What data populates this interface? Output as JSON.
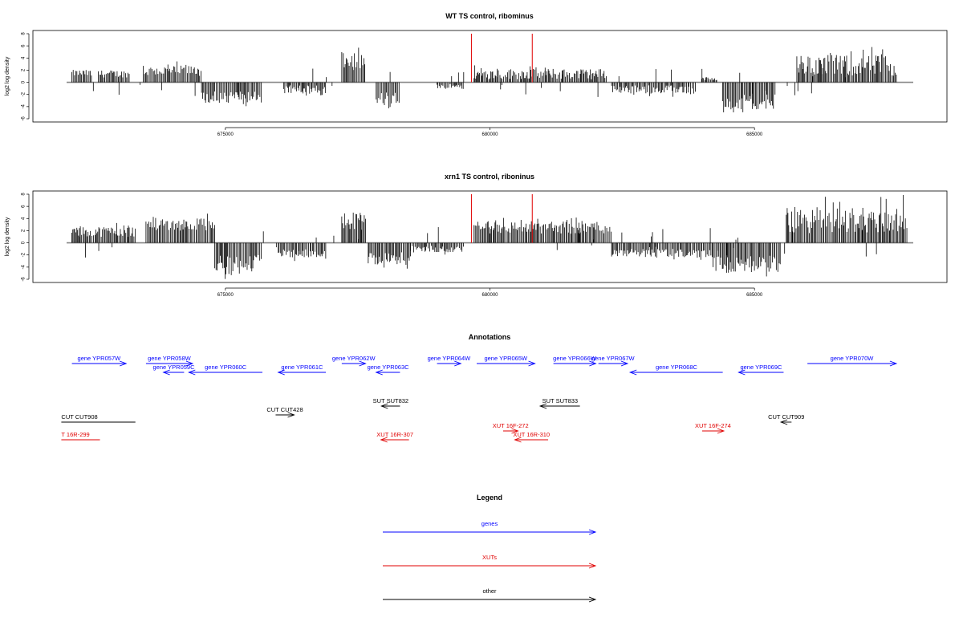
{
  "chart_data": [
    {
      "type": "bar",
      "title": "WT TS control, ribominus",
      "ylabel": "log2 log density",
      "xlabel": "",
      "xlim": [
        672000,
        688000
      ],
      "ylim": [
        -6,
        8
      ],
      "yticks": [
        8,
        6,
        4,
        2,
        0,
        -2,
        -4,
        -6
      ],
      "xticks": [
        675000,
        680000,
        685000
      ],
      "xtick_labels": [
        "675000",
        "680000",
        "685000"
      ],
      "highlight_color": "#e00000",
      "bar_color": "#000000",
      "baseline_color": "#888888",
      "highlights": [
        {
          "x": 679650,
          "y": 8
        },
        {
          "x": 680800,
          "y": 8
        }
      ],
      "regions": [
        {
          "start": 672100,
          "end": 672450,
          "min": 1.0,
          "max": 2.5,
          "sign": 1
        },
        {
          "start": 672600,
          "end": 673200,
          "min": 0.8,
          "max": 2.5,
          "sign": 1
        },
        {
          "start": 673450,
          "end": 674550,
          "min": 1.0,
          "max": 3.5,
          "sign": 1
        },
        {
          "start": 674550,
          "end": 675700,
          "min": 1.5,
          "max": 4.2,
          "sign": -1
        },
        {
          "start": 676100,
          "end": 676900,
          "min": 0.5,
          "max": 2.5,
          "sign": -1
        },
        {
          "start": 677200,
          "end": 677650,
          "min": 2.0,
          "max": 6.0,
          "sign": 1
        },
        {
          "start": 677850,
          "end": 678300,
          "min": 1.5,
          "max": 4.5,
          "sign": -1
        },
        {
          "start": 679000,
          "end": 679500,
          "min": 0.3,
          "max": 1.5,
          "sign": -1
        },
        {
          "start": 679700,
          "end": 682200,
          "min": 0.5,
          "max": 3.0,
          "sign": 1
        },
        {
          "start": 682300,
          "end": 683900,
          "min": 0.5,
          "max": 2.5,
          "sign": -1
        },
        {
          "start": 684000,
          "end": 684300,
          "min": 0.3,
          "max": 1.5,
          "sign": 1
        },
        {
          "start": 684400,
          "end": 685400,
          "min": 2.0,
          "max": 6.2,
          "sign": -1
        },
        {
          "start": 685800,
          "end": 687700,
          "min": 1.0,
          "max": 6.0,
          "sign": 1
        }
      ]
    },
    {
      "type": "bar",
      "title": "xrn1 TS control, riboninus",
      "ylabel": "log2 log density",
      "xlabel": "",
      "xlim": [
        672000,
        688000
      ],
      "ylim": [
        -6,
        8
      ],
      "yticks": [
        8,
        6,
        4,
        2,
        0,
        -2,
        -4,
        -6
      ],
      "xticks": [
        675000,
        680000,
        685000
      ],
      "xtick_labels": [
        "675000",
        "680000",
        "685000"
      ],
      "highlight_color": "#e00000",
      "bar_color": "#000000",
      "baseline_color": "#888888",
      "highlights": [
        {
          "x": 679650,
          "y": 8
        },
        {
          "x": 680800,
          "y": 8
        }
      ],
      "regions": [
        {
          "start": 672100,
          "end": 673300,
          "min": 1.0,
          "max": 3.5,
          "sign": 1
        },
        {
          "start": 673500,
          "end": 674800,
          "min": 2.0,
          "max": 5.0,
          "sign": 1
        },
        {
          "start": 674800,
          "end": 675700,
          "min": 2.0,
          "max": 6.0,
          "sign": -1
        },
        {
          "start": 676000,
          "end": 676900,
          "min": 1.0,
          "max": 3.0,
          "sign": -1
        },
        {
          "start": 677200,
          "end": 677650,
          "min": 2.0,
          "max": 6.5,
          "sign": 1
        },
        {
          "start": 677700,
          "end": 678500,
          "min": 1.5,
          "max": 4.5,
          "sign": -1
        },
        {
          "start": 678500,
          "end": 679500,
          "min": 0.5,
          "max": 2.0,
          "sign": -1
        },
        {
          "start": 679700,
          "end": 682300,
          "min": 1.5,
          "max": 4.5,
          "sign": 1
        },
        {
          "start": 682300,
          "end": 684200,
          "min": 1.0,
          "max": 3.0,
          "sign": -1
        },
        {
          "start": 684200,
          "end": 685500,
          "min": 2.0,
          "max": 6.0,
          "sign": -1
        },
        {
          "start": 685600,
          "end": 687900,
          "min": 1.5,
          "max": 7.9,
          "sign": 1
        }
      ]
    }
  ],
  "annotations": {
    "title": "Annotations",
    "features": [
      {
        "label": "gene YPR057W",
        "start": 672100,
        "end": 673125,
        "dir": "right",
        "row": 0,
        "color": "#0000ff"
      },
      {
        "label": "gene YPR058W",
        "start": 673500,
        "end": 674380,
        "dir": "right",
        "row": 0,
        "color": "#0000ff"
      },
      {
        "label": "gene YPR059C",
        "start": 673830,
        "end": 674220,
        "dir": "left",
        "row": 1,
        "color": "#0000ff"
      },
      {
        "label": "gene YPR060C",
        "start": 674310,
        "end": 675700,
        "dir": "left",
        "row": 1,
        "color": "#0000ff"
      },
      {
        "label": "gene YPR061C",
        "start": 676000,
        "end": 676900,
        "dir": "left",
        "row": 1,
        "color": "#0000ff"
      },
      {
        "label": "gene YPR062W",
        "start": 677200,
        "end": 677650,
        "dir": "right",
        "row": 0,
        "color": "#0000ff"
      },
      {
        "label": "gene YPR063C",
        "start": 677850,
        "end": 678300,
        "dir": "left",
        "row": 1,
        "color": "#0000ff"
      },
      {
        "label": "gene YPR064W",
        "start": 679000,
        "end": 679450,
        "dir": "right",
        "row": 0,
        "color": "#0000ff"
      },
      {
        "label": "gene YPR065W",
        "start": 679750,
        "end": 680850,
        "dir": "right",
        "row": 0,
        "color": "#0000ff"
      },
      {
        "label": "gene YPR066W",
        "start": 681200,
        "end": 682000,
        "dir": "right",
        "row": 0,
        "color": "#0000ff"
      },
      {
        "label": "gene YPR067W",
        "start": 682050,
        "end": 682600,
        "dir": "right",
        "row": 0,
        "color": "#0000ff"
      },
      {
        "label": "gene YPR068C",
        "start": 682650,
        "end": 684400,
        "dir": "left",
        "row": 1,
        "color": "#0000ff"
      },
      {
        "label": "gene YPR069C",
        "start": 684700,
        "end": 685550,
        "dir": "left",
        "row": 1,
        "color": "#0000ff"
      },
      {
        "label": "gene YPR070W",
        "start": 686000,
        "end": 687680,
        "dir": "right",
        "row": 0,
        "color": "#0000ff"
      },
      {
        "label": "SUT SUT832",
        "start": 677950,
        "end": 678300,
        "dir": "left",
        "row": 2,
        "color": "#000000"
      },
      {
        "label": "SUT SUT833",
        "start": 680950,
        "end": 681700,
        "dir": "left",
        "row": 2,
        "color": "#000000"
      },
      {
        "label": "CUT CUT428",
        "start": 675950,
        "end": 676300,
        "dir": "right",
        "row": 3,
        "color": "#000000"
      },
      {
        "label": "CUT CUT908",
        "start": 671900,
        "end": 673300,
        "dir": "none",
        "row": 4,
        "color": "#000000"
      },
      {
        "label": "CUT CUT909",
        "start": 685500,
        "end": 685700,
        "dir": "left",
        "row": 4,
        "color": "#000000"
      },
      {
        "label": "XUT 16F-272",
        "start": 680250,
        "end": 680530,
        "dir": "right",
        "row": 5,
        "color": "#e00000"
      },
      {
        "label": "XUT 16F-274",
        "start": 684010,
        "end": 684420,
        "dir": "right",
        "row": 5,
        "color": "#e00000"
      },
      {
        "label": "T 16R-299",
        "start": 671900,
        "end": 672630,
        "dir": "none",
        "row": 6,
        "color": "#e00000"
      },
      {
        "label": "XUT 16R-307",
        "start": 677940,
        "end": 678470,
        "dir": "left",
        "row": 6,
        "color": "#e00000"
      },
      {
        "label": "XUT 16R-310",
        "start": 680470,
        "end": 681100,
        "dir": "left",
        "row": 6,
        "color": "#e00000"
      }
    ]
  },
  "legend": {
    "title": "Legend",
    "items": [
      {
        "label": "genes",
        "color": "#0000ff"
      },
      {
        "label": "XUTs",
        "color": "#e00000"
      },
      {
        "label": "other",
        "color": "#000000"
      }
    ]
  }
}
